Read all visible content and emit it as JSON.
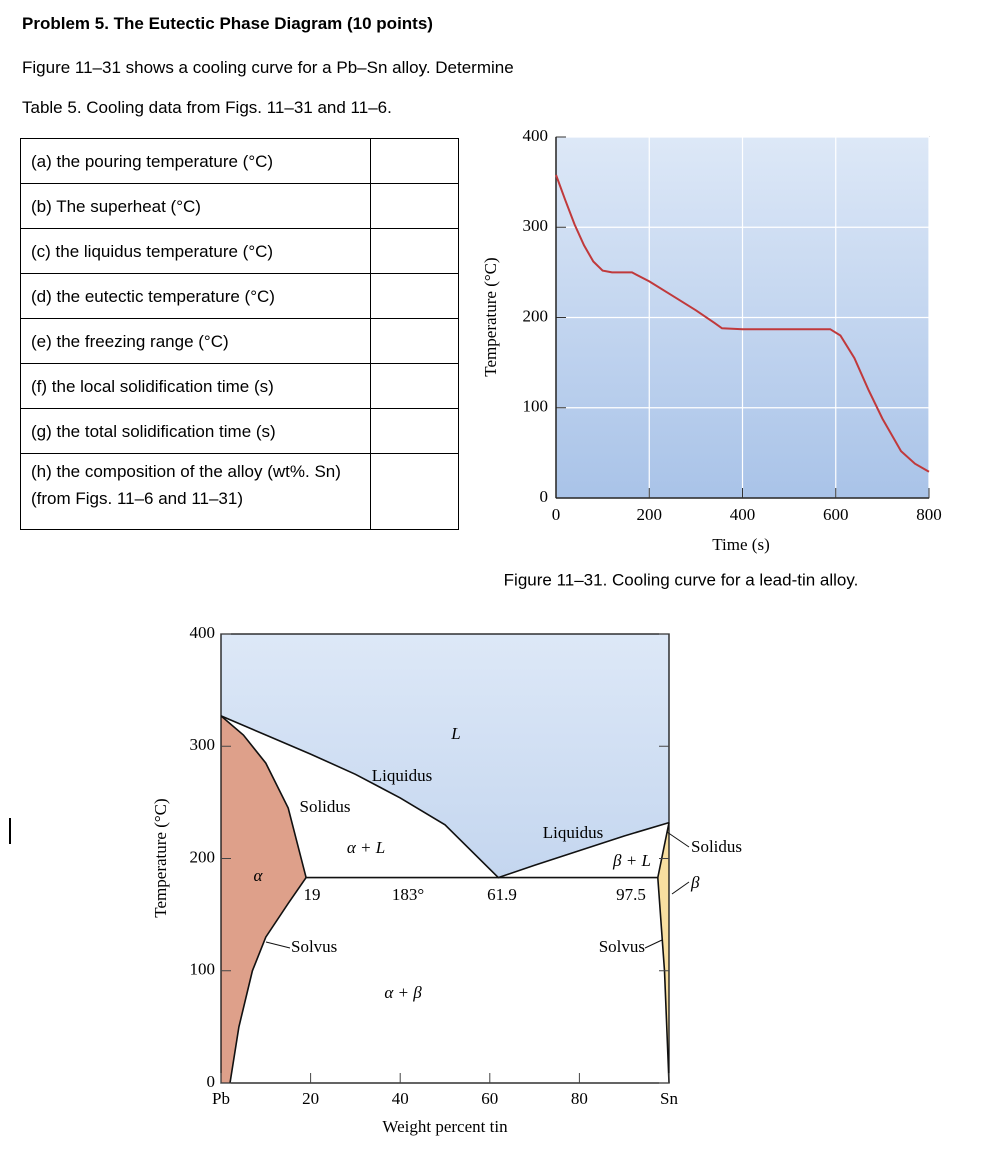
{
  "problem": {
    "title": "Problem 5.  The Eutectic Phase Diagram (10 points)",
    "intro": "Figure 11–31 shows a cooling curve for a Pb–Sn alloy. Determine",
    "table_caption": "Table 5.  Cooling data from Figs. 11–31 and 11–6."
  },
  "table": {
    "rows": [
      "(a) the pouring temperature (°C)",
      "(b) The superheat (°C)",
      "(c) the liquidus temperature (°C)",
      "(d) the eutectic temperature (°C)",
      "(e) the freezing range (°C)",
      "(f) the local solidification time (s)",
      "(g) the total solidification time (s)",
      "(h) the composition of the alloy (wt%. Sn) (from Figs. 11–6 and 11–31)"
    ]
  },
  "chart_data": [
    {
      "type": "line",
      "caption": "Figure 11–31. Cooling curve for a lead-tin alloy.",
      "x_label": "Time (s)",
      "y_label": "Temperature (°C)",
      "xlim": [
        0,
        800
      ],
      "ylim": [
        0,
        400
      ],
      "xticks": [
        0,
        200,
        400,
        600,
        800
      ],
      "yticks": [
        0,
        100,
        200,
        300,
        400
      ],
      "grid": true,
      "background": [
        "#dde8f7",
        "#a9c3e8"
      ],
      "series": [
        {
          "color": "#c0393b",
          "x": [
            0,
            20,
            40,
            60,
            80,
            100,
            120,
            163,
            200,
            250,
            300,
            340,
            356,
            400,
            500,
            588,
            610,
            640,
            670,
            700,
            740,
            770,
            800
          ],
          "values": [
            358,
            330,
            303,
            280,
            262,
            252,
            250,
            250,
            240,
            224,
            208,
            194,
            188,
            187,
            187,
            187,
            180,
            155,
            120,
            88,
            52,
            38,
            29
          ]
        }
      ]
    },
    {
      "type": "phase-diagram",
      "x_label": "Weight percent tin",
      "y_label": "Temperature (°C)",
      "xlim": [
        0,
        100
      ],
      "ylim": [
        0,
        400
      ],
      "xticks": [
        {
          "value": 0,
          "label": "Pb"
        },
        20,
        40,
        60,
        80,
        {
          "value": 100,
          "label": "Sn"
        }
      ],
      "yticks": [
        0,
        100,
        200,
        300,
        400
      ],
      "liquid_color": [
        "#dde8f7",
        "#c4d6ef"
      ],
      "alpha_color": "#dea08a",
      "beta_color": "#f8dfa0",
      "curves": [
        {
          "x": [
            0,
            10,
            20,
            30,
            40,
            50,
            61.9,
            70,
            80,
            90,
            100
          ],
          "y": [
            327,
            310,
            293,
            275,
            254,
            230,
            183,
            194,
            207,
            220,
            232
          ]
        },
        {
          "x": [
            0,
            5,
            10,
            15,
            19
          ],
          "y": [
            327,
            310,
            285,
            245,
            183
          ]
        },
        {
          "x": [
            19,
            15,
            10,
            7,
            4,
            2
          ],
          "y": [
            183,
            160,
            130,
            100,
            50,
            0
          ]
        },
        {
          "x": [
            19,
            97.5
          ],
          "y": [
            183,
            183
          ]
        },
        {
          "x": [
            97.5,
            100
          ],
          "y": [
            183,
            232
          ]
        },
        {
          "x": [
            97.5,
            99,
            100
          ],
          "y": [
            183,
            100,
            0
          ]
        }
      ],
      "annotations": [
        "L",
        "Liquidus",
        "Solidus",
        "α + L",
        "α",
        "19",
        "183°",
        "61.9",
        "Liquidus",
        "β + L",
        "97.5",
        "Solidus",
        "β",
        "Solvus",
        "Solvus",
        "α + β"
      ]
    }
  ]
}
